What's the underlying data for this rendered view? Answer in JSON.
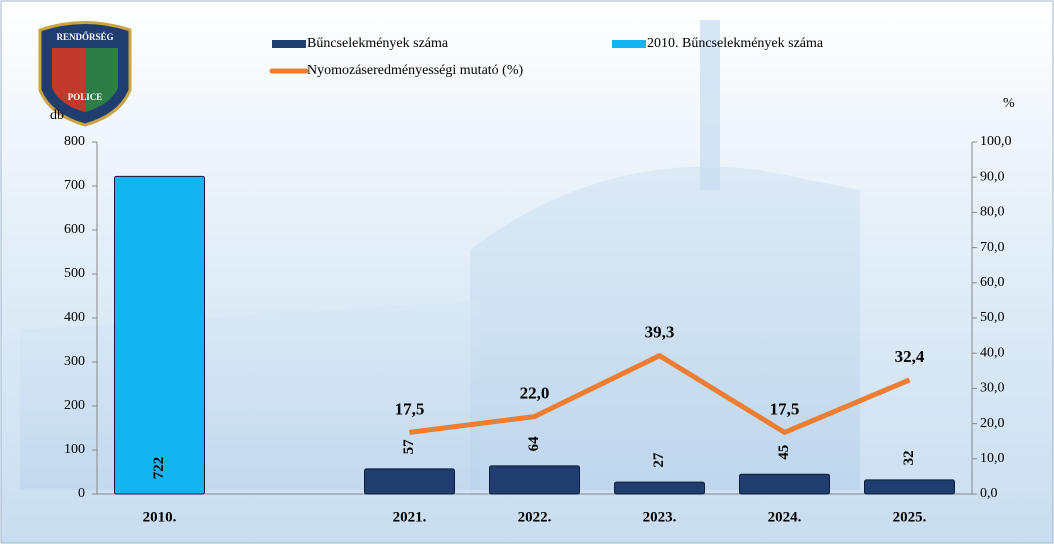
{
  "logo": {
    "top": "RENDŐRSÉG",
    "bottom": "POLICE"
  },
  "chart_data": {
    "type": "bar",
    "y_label": "db",
    "y2_label": "%",
    "categories": [
      "2010.",
      null,
      "2021.",
      "2022.",
      "2023.",
      "2024.",
      "2025."
    ],
    "series": [
      {
        "name": "Bűncselekmények száma",
        "color": "#1f3d6e",
        "values": [
          null,
          null,
          57,
          64,
          27,
          45,
          32
        ]
      },
      {
        "name": "2010. Bűncselekmények száma",
        "color": "#14b4f0",
        "values": [
          722,
          null,
          null,
          null,
          null,
          null,
          null
        ]
      },
      {
        "name": "Nyomozáseredményességi mutató (%)",
        "type": "line",
        "axis": "y2",
        "color": "#ed7d31",
        "values": [
          null,
          null,
          17.5,
          22.0,
          39.3,
          17.5,
          32.4
        ],
        "value_labels": [
          null,
          null,
          "17,5",
          "22,0",
          "39,3",
          "17,5",
          "32,4"
        ]
      }
    ],
    "ylim": [
      0,
      800
    ],
    "yticks": [
      0,
      100,
      200,
      300,
      400,
      500,
      600,
      700,
      800
    ],
    "y2lim": [
      0,
      100
    ],
    "y2ticks": [
      {
        "value": 0,
        "label": "0,0"
      },
      {
        "value": 10,
        "label": "10,0"
      },
      {
        "value": 20,
        "label": "20,0"
      },
      {
        "value": 30,
        "label": "30,0"
      },
      {
        "value": 40,
        "label": "40,0"
      },
      {
        "value": 50,
        "label": "50,0"
      },
      {
        "value": 60,
        "label": "60,0"
      },
      {
        "value": 70,
        "label": "70,0"
      },
      {
        "value": 80,
        "label": "80,0"
      },
      {
        "value": 90,
        "label": "90,0"
      },
      {
        "value": 100,
        "label": "100,0"
      }
    ]
  }
}
